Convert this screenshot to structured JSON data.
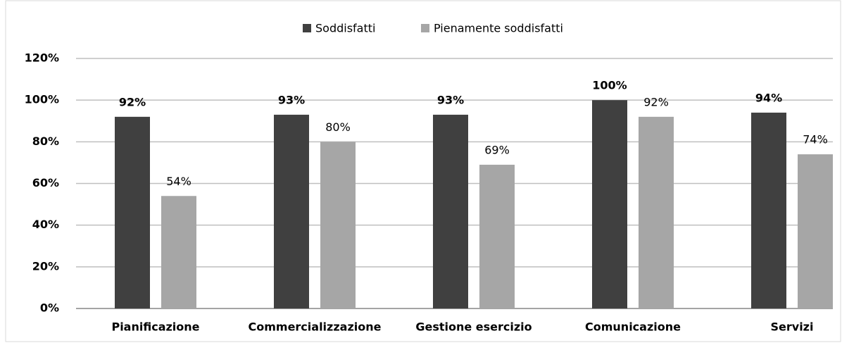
{
  "chart_data": {
    "type": "bar",
    "categories": [
      "Pianificazione",
      "Commercializzazione",
      "Gestione esercizio",
      "Comunicazione",
      "Servizi"
    ],
    "series": [
      {
        "name": "Soddisfatti",
        "color": "#404040",
        "values": [
          92,
          93,
          93,
          100,
          94
        ],
        "value_labels": [
          "92%",
          "93%",
          "93%",
          "100%",
          "94%"
        ]
      },
      {
        "name": "Pienamente soddisfatti",
        "color": "#a6a6a6",
        "values": [
          54,
          80,
          69,
          92,
          74
        ],
        "value_labels": [
          "54%",
          "80%",
          "69%",
          "92%",
          "74%"
        ]
      }
    ],
    "ylim": [
      0,
      120
    ],
    "yticks": [
      {
        "value": 0,
        "label": "0%"
      },
      {
        "value": 20,
        "label": "20%"
      },
      {
        "value": 40,
        "label": "40%"
      },
      {
        "value": 60,
        "label": "60%"
      },
      {
        "value": 80,
        "label": "80%"
      },
      {
        "value": 100,
        "label": "100%"
      },
      {
        "value": 120,
        "label": "120%"
      }
    ],
    "grid": true,
    "legend": "top"
  }
}
